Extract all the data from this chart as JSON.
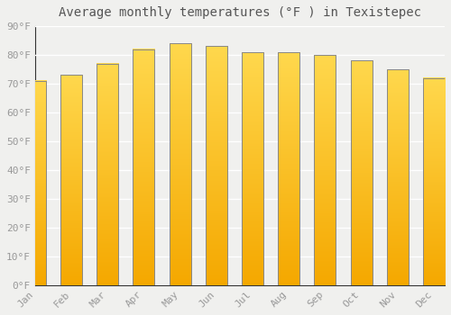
{
  "title": "Average monthly temperatures (°F ) in Texistepec",
  "months": [
    "Jan",
    "Feb",
    "Mar",
    "Apr",
    "May",
    "Jun",
    "Jul",
    "Aug",
    "Sep",
    "Oct",
    "Nov",
    "Dec"
  ],
  "values": [
    71,
    73,
    77,
    82,
    84,
    83,
    81,
    81,
    80,
    78,
    75,
    72
  ],
  "bar_color_bottom": "#F5A800",
  "bar_color_top": "#FFD84D",
  "bar_edge_color": "#888888",
  "background_color": "#f0f0ee",
  "grid_color": "#ffffff",
  "ylim": [
    0,
    90
  ],
  "yticks": [
    0,
    10,
    20,
    30,
    40,
    50,
    60,
    70,
    80,
    90
  ],
  "ytick_labels": [
    "0°F",
    "10°F",
    "20°F",
    "30°F",
    "40°F",
    "50°F",
    "60°F",
    "70°F",
    "80°F",
    "90°F"
  ],
  "title_fontsize": 10,
  "tick_fontsize": 8,
  "font_family": "monospace",
  "tick_color": "#999999",
  "title_color": "#555555",
  "bar_width": 0.6
}
